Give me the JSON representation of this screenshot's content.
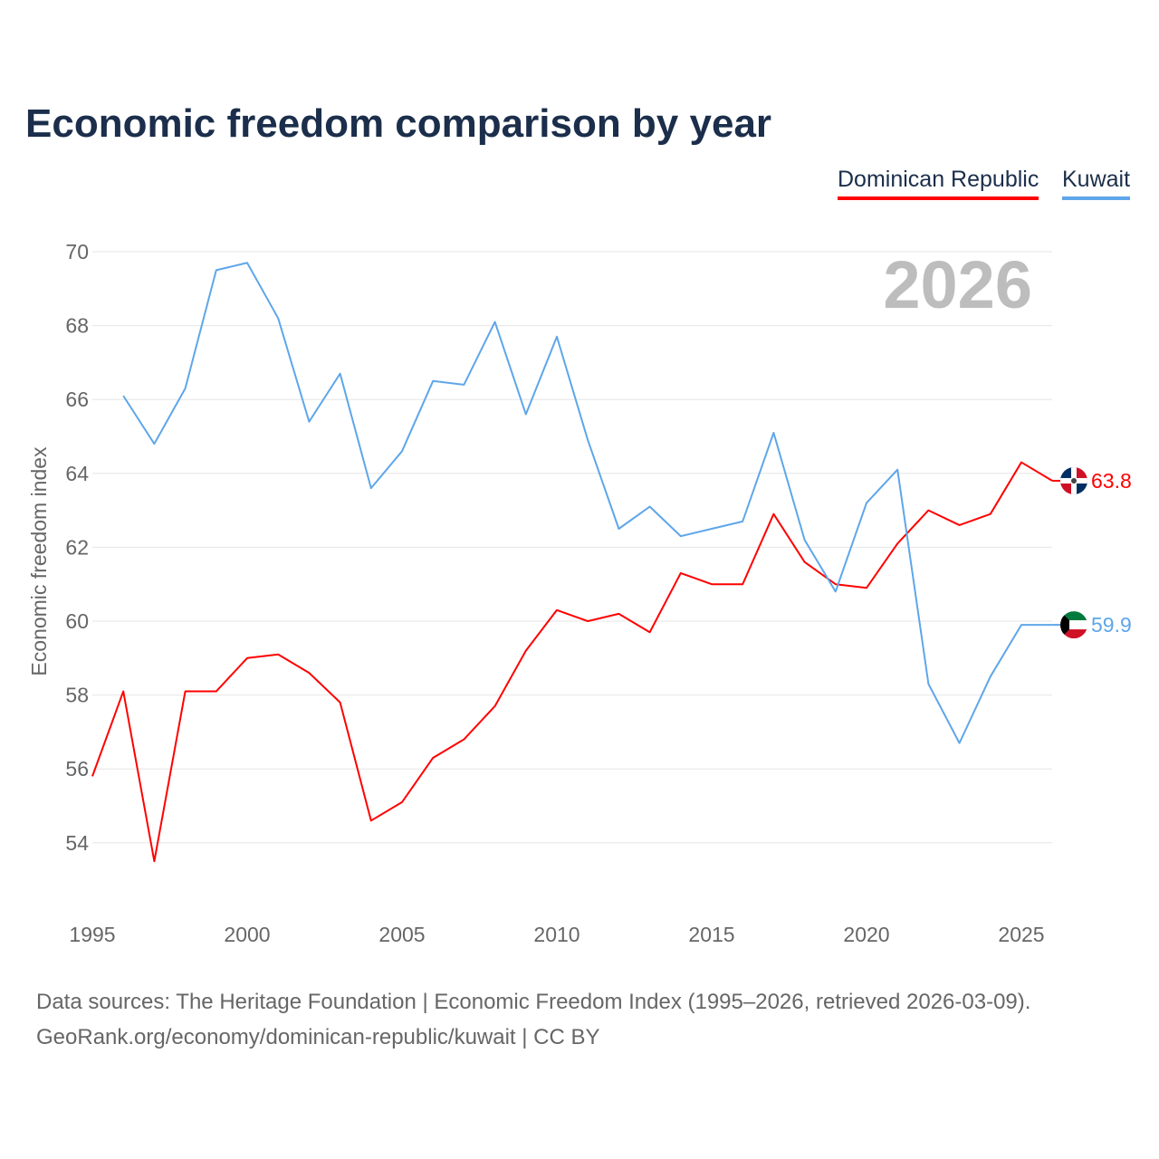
{
  "title": "Economic freedom comparison by year",
  "footer": {
    "line1": "Data sources: The Heritage Foundation | Economic Freedom Index (1995–2026, retrieved 2026-03-09).",
    "line2": "GeoRank.org/economy/dominican-republic/kuwait | CC BY"
  },
  "chart_data": {
    "type": "line",
    "title": "Economic freedom comparison by year",
    "xlabel": "",
    "ylabel": "Economic freedom index",
    "year_watermark": "2026",
    "xlim": [
      1995,
      2026
    ],
    "ylim": [
      52.5,
      70.5
    ],
    "x_ticks": [
      "1995",
      "2000",
      "2005",
      "2010",
      "2015",
      "2020",
      "2025"
    ],
    "y_ticks": [
      "54",
      "56",
      "58",
      "60",
      "62",
      "64",
      "66",
      "68",
      "70"
    ],
    "grid": true,
    "legend_position": "top-right",
    "series": [
      {
        "name": "Dominican Republic",
        "color": "#ff0000",
        "end_label": "63.8",
        "flag": "dominican-republic-flag-icon",
        "x": [
          1995,
          1996,
          1997,
          1998,
          1999,
          2000,
          2001,
          2002,
          2003,
          2004,
          2005,
          2006,
          2007,
          2008,
          2009,
          2010,
          2011,
          2012,
          2013,
          2014,
          2015,
          2016,
          2017,
          2018,
          2019,
          2020,
          2021,
          2022,
          2023,
          2024,
          2025,
          2026
        ],
        "values": [
          55.8,
          58.1,
          53.5,
          58.1,
          58.1,
          59.0,
          59.1,
          58.6,
          57.8,
          54.6,
          55.1,
          56.3,
          56.8,
          57.7,
          59.2,
          60.3,
          60.0,
          60.2,
          59.7,
          61.3,
          61.0,
          61.0,
          62.9,
          61.6,
          61.0,
          60.9,
          62.1,
          63.0,
          62.6,
          62.9,
          64.3,
          63.8
        ]
      },
      {
        "name": "Kuwait",
        "color": "#5ea6ea",
        "end_label": "59.9",
        "flag": "kuwait-flag-icon",
        "x": [
          1996,
          1997,
          1998,
          1999,
          2000,
          2001,
          2002,
          2003,
          2004,
          2005,
          2006,
          2007,
          2008,
          2009,
          2010,
          2011,
          2012,
          2013,
          2014,
          2015,
          2016,
          2017,
          2018,
          2019,
          2020,
          2021,
          2022,
          2023,
          2024,
          2025,
          2026
        ],
        "values": [
          66.1,
          64.8,
          66.3,
          69.5,
          69.7,
          68.2,
          65.4,
          66.7,
          63.6,
          64.6,
          66.5,
          66.4,
          68.1,
          65.6,
          67.7,
          64.9,
          62.5,
          63.1,
          62.3,
          62.5,
          62.7,
          65.1,
          62.2,
          60.8,
          63.2,
          64.1,
          58.3,
          56.7,
          58.5,
          59.9,
          59.9
        ]
      }
    ]
  }
}
